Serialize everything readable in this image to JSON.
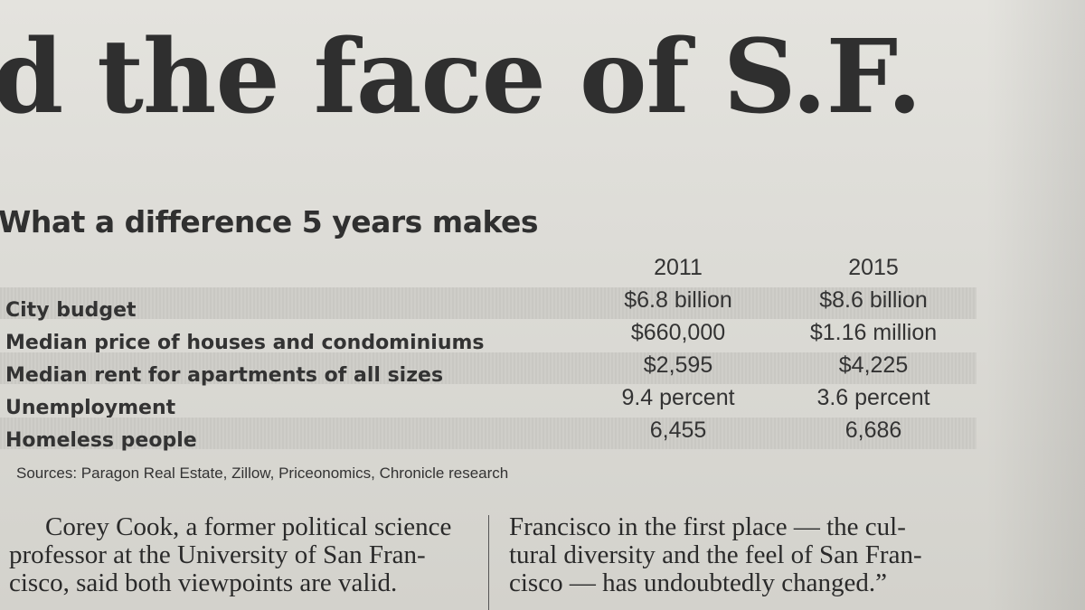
{
  "headline": "d the face of S.F.",
  "table": {
    "title": "What a difference 5 years makes",
    "columns": [
      "2011",
      "2015"
    ],
    "rows": [
      {
        "label": "City budget",
        "v2011": "$6.8 billion",
        "v2015": "$8.6 billion"
      },
      {
        "label": "Median price of houses and condominiums",
        "v2011": "$660,000",
        "v2015": "$1.16 million"
      },
      {
        "label": "Median rent for apartments of all sizes",
        "v2011": "$2,595",
        "v2015": "$4,225"
      },
      {
        "label": "Unemployment",
        "v2011": "9.4 percent",
        "v2015": "3.6 percent"
      },
      {
        "label": "Homeless people",
        "v2011": "6,455",
        "v2015": "6,686"
      }
    ],
    "sources": "Sources: Paragon Real Estate, Zillow, Priceonomics, Chronicle research"
  },
  "article": {
    "left_lines": [
      "Corey Cook, a former political science",
      "professor at the University of San Fran-",
      "cisco, said both viewpoints are valid."
    ],
    "right_lines": [
      "Francisco in the first place — the cul-",
      "tural diversity and the feel of San Fran-",
      "cisco — has undoubtedly changed.”"
    ]
  }
}
